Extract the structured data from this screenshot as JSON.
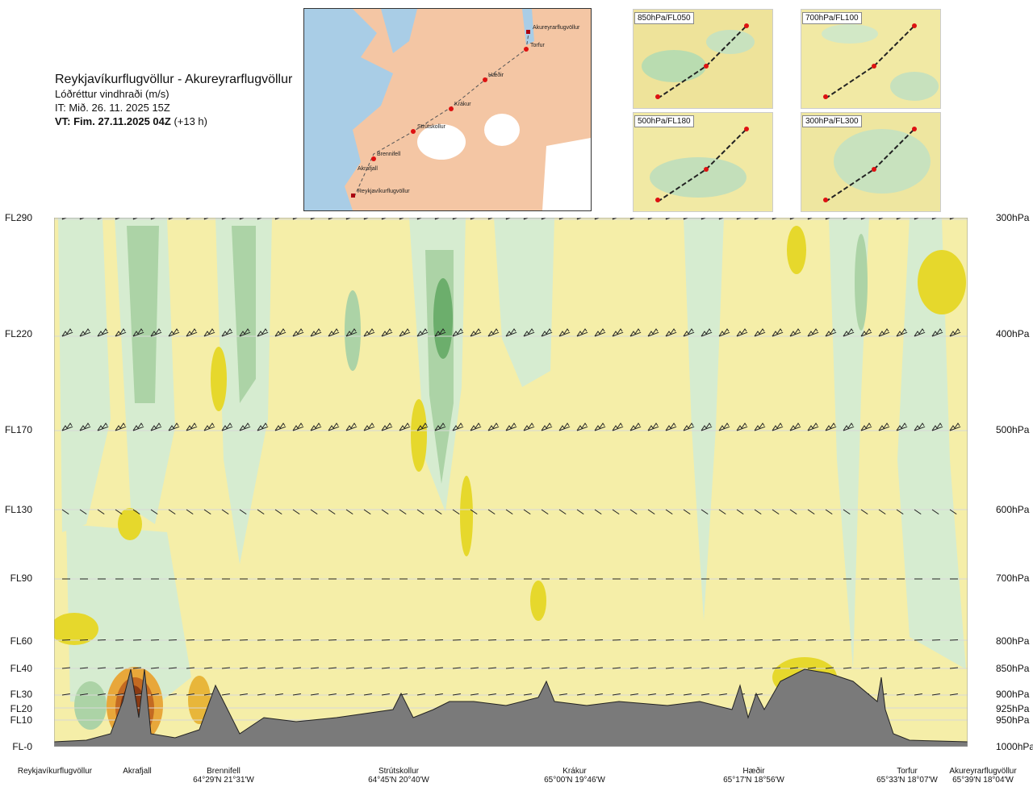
{
  "title": {
    "route": "Reykjavíkurflugvöllur - Akureyrarflugvöllur",
    "variable": "Lóðréttur vindhraði (m/s)",
    "issue_time": "IT: Mið. 26. 11. 2025 15Z",
    "valid_prefix": "VT: Fim. 27.11.2025 04Z",
    "valid_suffix": "(+13 h)"
  },
  "map_labels": [
    "Akureyrarflugvöllur",
    "Torfur",
    "Hæðir",
    "Krákur",
    "Strútskollur",
    "Brennifell",
    "Akrafjall",
    "Reykjavíkurflugvöllur"
  ],
  "mini_maps": [
    "850hPa/FL050",
    "700hPa/FL100",
    "500hPa/FL180",
    "300hPa/FL300"
  ],
  "colors": {
    "updraft_yellow": "#e6d82c",
    "downdraft_green": "#9fcfa0",
    "background": "#f5eea8",
    "terrain": "#7a7a7a",
    "strong_updraft": "#8b3a12"
  },
  "chart_data": {
    "type": "cross-section",
    "title": "Lóðréttur vindhraði (m/s)",
    "levels": [
      {
        "fl": "FL290",
        "hpa": "300hPa"
      },
      {
        "fl": "FL220",
        "hpa": "400hPa"
      },
      {
        "fl": "FL170",
        "hpa": "500hPa"
      },
      {
        "fl": "FL130",
        "hpa": "600hPa"
      },
      {
        "fl": "FL90",
        "hpa": "700hPa"
      },
      {
        "fl": "FL60",
        "hpa": "800hPa"
      },
      {
        "fl": "FL40",
        "hpa": "850hPa"
      },
      {
        "fl": "FL30",
        "hpa": "900hPa"
      },
      {
        "fl": "FL20",
        "hpa": "925hPa"
      },
      {
        "fl": "FL10",
        "hpa": "950hPa"
      },
      {
        "fl": "FL-0",
        "hpa": "1000hPa"
      }
    ],
    "locations": [
      {
        "name": "Reykjavíkurflugvöllur",
        "coord": ""
      },
      {
        "name": "Akrafjall",
        "coord": ""
      },
      {
        "name": "Brennifell",
        "coord": "64°29'N 21°31'W"
      },
      {
        "name": "Strútskollur",
        "coord": "64°45'N 20°40'W"
      },
      {
        "name": "Krákur",
        "coord": "65°00'N 19°46'W"
      },
      {
        "name": "Hæðir",
        "coord": "65°17'N 18°56'W"
      },
      {
        "name": "Torfur",
        "coord": "65°33'N 18°07'W"
      },
      {
        "name": "Akureyrarflugvöllur",
        "coord": "65°39'N 18°04'W"
      }
    ]
  }
}
